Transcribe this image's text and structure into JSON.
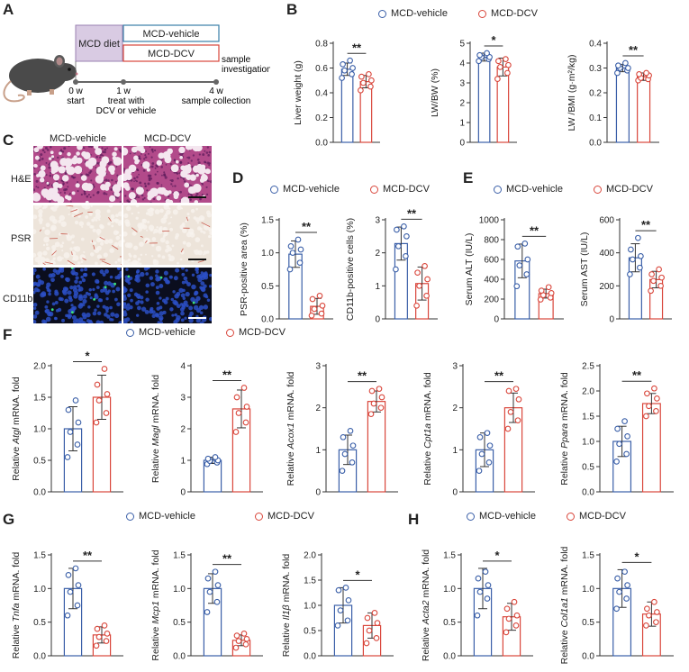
{
  "panel_labels": [
    "A",
    "B",
    "C",
    "D",
    "E",
    "F",
    "G",
    "H"
  ],
  "colors": {
    "vehicle": "#3a5fa8",
    "dcv": "#d9463b",
    "diet_box": "#d9cbe3",
    "axis": "#333333"
  },
  "legend": {
    "vehicle": "MCD-vehicle",
    "dcv": "MCD-DCV"
  },
  "schematic": {
    "diet_label": "MCD diet",
    "vehicle_box": "MCD-vehicle",
    "dcv_box": "MCD-DCV",
    "ticks": [
      {
        "time": "0 w",
        "desc": "start"
      },
      {
        "time": "1 w",
        "desc": "treat with DCV or vehicle"
      },
      {
        "time": "4 w",
        "desc": "sample collection"
      }
    ],
    "end_label": "sample investigation",
    "mouse_icon": "mouse-icon"
  },
  "micrographs": {
    "columns": [
      "MCD-vehicle",
      "MCD-DCV"
    ],
    "rows": [
      "H&E",
      "PSR",
      "CD11b"
    ]
  },
  "chart_data": [
    {
      "id": "B1",
      "type": "bar",
      "ylabel": "Liver weight (g)",
      "ylim": [
        0,
        0.8
      ],
      "yticks": [
        0,
        0.2,
        0.4,
        0.6,
        0.8
      ],
      "categories": [
        "MCD-vehicle",
        "MCD-DCV"
      ],
      "values": [
        0.59,
        0.49
      ],
      "sd": [
        0.05,
        0.05
      ],
      "sig": "**",
      "points": [
        [
          0.52,
          0.55,
          0.58,
          0.6,
          0.63,
          0.66
        ],
        [
          0.42,
          0.45,
          0.48,
          0.5,
          0.53,
          0.55
        ]
      ]
    },
    {
      "id": "B2",
      "type": "bar",
      "ylabel": "LW/BW (%)",
      "ylim": [
        0,
        5
      ],
      "yticks": [
        0,
        1,
        2,
        3,
        4,
        5
      ],
      "categories": [
        "MCD-vehicle",
        "MCD-DCV"
      ],
      "values": [
        4.3,
        3.8
      ],
      "sd": [
        0.2,
        0.45
      ],
      "sig": "*",
      "points": [
        [
          4.1,
          4.2,
          4.3,
          4.3,
          4.4,
          4.5
        ],
        [
          3.2,
          3.5,
          3.8,
          3.9,
          4.1,
          4.2
        ]
      ]
    },
    {
      "id": "B3",
      "type": "bar",
      "ylabel": "LW /BMI (g·m²/kg)",
      "ylim": [
        0,
        0.4
      ],
      "yticks": [
        0,
        0.1,
        0.2,
        0.3,
        0.4
      ],
      "categories": [
        "MCD-vehicle",
        "MCD-DCV"
      ],
      "values": [
        0.3,
        0.265
      ],
      "sd": [
        0.015,
        0.015
      ],
      "sig": "**",
      "points": [
        [
          0.28,
          0.29,
          0.3,
          0.3,
          0.31,
          0.32
        ],
        [
          0.25,
          0.255,
          0.26,
          0.27,
          0.275,
          0.28
        ]
      ]
    },
    {
      "id": "D1",
      "type": "bar",
      "ylabel": "PSR-positive area (%)",
      "ylim": [
        0,
        1.5
      ],
      "yticks": [
        0,
        0.5,
        1.0,
        1.5
      ],
      "categories": [
        "MCD-vehicle",
        "MCD-DCV"
      ],
      "values": [
        0.98,
        0.19
      ],
      "sd": [
        0.2,
        0.12
      ],
      "sig": "**",
      "points": [
        [
          0.75,
          0.85,
          1.0,
          1.05,
          1.1,
          1.2
        ],
        [
          0.05,
          0.08,
          0.15,
          0.2,
          0.3,
          0.35
        ]
      ]
    },
    {
      "id": "D2",
      "type": "bar",
      "ylabel": "CD11b-positive cells (%)",
      "ylim": [
        0,
        3
      ],
      "yticks": [
        0,
        1,
        2,
        3
      ],
      "categories": [
        "MCD-vehicle",
        "MCD-DCV"
      ],
      "values": [
        2.28,
        1.07
      ],
      "sd": [
        0.5,
        0.5
      ],
      "sig": "**",
      "points": [
        [
          1.5,
          1.9,
          2.2,
          2.5,
          2.7,
          2.8
        ],
        [
          0.4,
          0.7,
          1.0,
          1.2,
          1.4,
          1.6
        ]
      ]
    },
    {
      "id": "E1",
      "type": "bar",
      "ylabel": "Serum ALT (IU/L)",
      "ylim": [
        0,
        1000
      ],
      "yticks": [
        0,
        200,
        400,
        600,
        800,
        1000
      ],
      "categories": [
        "MCD-vehicle",
        "MCD-DCV"
      ],
      "values": [
        585,
        255
      ],
      "sd": [
        170,
        45
      ],
      "sig": "**",
      "points": [
        [
          330,
          450,
          540,
          600,
          730,
          760
        ],
        [
          195,
          215,
          240,
          260,
          285,
          320
        ]
      ]
    },
    {
      "id": "E2",
      "type": "bar",
      "ylabel": "Serum AST (IU/L)",
      "ylim": [
        0,
        600
      ],
      "yticks": [
        0,
        200,
        400,
        600
      ],
      "categories": [
        "MCD-vehicle",
        "MCD-DCV"
      ],
      "values": [
        370,
        238
      ],
      "sd": [
        85,
        50
      ],
      "sig": "**",
      "points": [
        [
          270,
          310,
          360,
          380,
          420,
          490
        ],
        [
          170,
          200,
          230,
          250,
          270,
          300
        ]
      ]
    },
    {
      "id": "F1",
      "type": "bar",
      "ylabel_pre": "Relative ",
      "ylabel_gene": "Atgl",
      "ylabel_post": " mRNA. fold",
      "ylim": [
        0,
        2
      ],
      "yticks": [
        0,
        0.5,
        1.0,
        1.5,
        2.0
      ],
      "categories": [
        "MCD-vehicle",
        "MCD-DCV"
      ],
      "values": [
        1.0,
        1.5
      ],
      "sd": [
        0.35,
        0.35
      ],
      "sig": "*",
      "points": [
        [
          0.55,
          0.75,
          0.95,
          1.1,
          1.3,
          1.45
        ],
        [
          1.1,
          1.25,
          1.45,
          1.55,
          1.7,
          1.95
        ]
      ]
    },
    {
      "id": "F2",
      "type": "bar",
      "ylabel_pre": "Relative ",
      "ylabel_gene": "Magl",
      "ylabel_post": " mRNA. fold",
      "ylim": [
        0,
        4
      ],
      "yticks": [
        0,
        1,
        2,
        3,
        4
      ],
      "categories": [
        "MCD-vehicle",
        "MCD-DCV"
      ],
      "values": [
        1.0,
        2.63
      ],
      "sd": [
        0.1,
        0.6
      ],
      "sig": "**",
      "points": [
        [
          0.88,
          0.93,
          0.98,
          1.0,
          1.05,
          1.1
        ],
        [
          1.9,
          2.2,
          2.5,
          2.7,
          3.0,
          3.3
        ]
      ]
    },
    {
      "id": "F3",
      "type": "bar",
      "ylabel_pre": "Relative ",
      "ylabel_gene": "Acox1",
      "ylabel_post": " mRNA. fold",
      "ylim": [
        0,
        3
      ],
      "yticks": [
        0,
        1,
        2,
        3
      ],
      "categories": [
        "MCD-vehicle",
        "MCD-DCV"
      ],
      "values": [
        1.0,
        2.15
      ],
      "sd": [
        0.35,
        0.25
      ],
      "sig": "**",
      "points": [
        [
          0.5,
          0.7,
          0.9,
          1.1,
          1.3,
          1.45
        ],
        [
          1.85,
          2.0,
          2.1,
          2.25,
          2.4,
          2.45
        ]
      ]
    },
    {
      "id": "F4",
      "type": "bar",
      "ylabel_pre": "Relative ",
      "ylabel_gene": "Cpt1a",
      "ylabel_post": " mRNA. fold",
      "ylim": [
        0,
        3
      ],
      "yticks": [
        0,
        1,
        2,
        3
      ],
      "categories": [
        "MCD-vehicle",
        "MCD-DCV"
      ],
      "values": [
        1.0,
        2.0
      ],
      "sd": [
        0.4,
        0.35
      ],
      "sig": "**",
      "points": [
        [
          0.5,
          0.7,
          0.9,
          1.1,
          1.3,
          1.4
        ],
        [
          1.5,
          1.7,
          1.9,
          2.2,
          2.4,
          2.45
        ]
      ]
    },
    {
      "id": "F5",
      "type": "bar",
      "ylabel_pre": "Relative ",
      "ylabel_gene": "Ppara",
      "ylabel_post": " mRNA. fold",
      "ylim": [
        0,
        2.5
      ],
      "yticks": [
        0,
        0.5,
        1.0,
        1.5,
        2.0,
        2.5
      ],
      "categories": [
        "MCD-vehicle",
        "MCD-DCV"
      ],
      "values": [
        1.0,
        1.75
      ],
      "sd": [
        0.3,
        0.2
      ],
      "sig": "**",
      "points": [
        [
          0.6,
          0.75,
          0.95,
          1.1,
          1.25,
          1.4
        ],
        [
          1.5,
          1.6,
          1.7,
          1.85,
          1.95,
          2.05
        ]
      ]
    },
    {
      "id": "G1",
      "type": "bar",
      "ylabel_pre": "Relative ",
      "ylabel_gene": "Tnfa",
      "ylabel_post": " mRNA. fold",
      "ylim": [
        0,
        1.5
      ],
      "yticks": [
        0,
        0.5,
        1.0,
        1.5
      ],
      "categories": [
        "MCD-vehicle",
        "MCD-DCV"
      ],
      "values": [
        1.0,
        0.31
      ],
      "sd": [
        0.3,
        0.12
      ],
      "sig": "**",
      "points": [
        [
          0.6,
          0.75,
          0.95,
          1.05,
          1.2,
          1.3
        ],
        [
          0.15,
          0.22,
          0.28,
          0.33,
          0.4,
          0.45
        ]
      ]
    },
    {
      "id": "G2",
      "type": "bar",
      "ylabel_pre": "Relative ",
      "ylabel_gene": "Mcp1",
      "ylabel_post": " mRNA. fold",
      "ylim": [
        0,
        1.5
      ],
      "yticks": [
        0,
        0.5,
        1.0,
        1.5
      ],
      "categories": [
        "MCD-vehicle",
        "MCD-DCV"
      ],
      "values": [
        1.0,
        0.23
      ],
      "sd": [
        0.22,
        0.08
      ],
      "sig": "**",
      "points": [
        [
          0.65,
          0.8,
          0.95,
          1.05,
          1.15,
          1.25
        ],
        [
          0.12,
          0.17,
          0.22,
          0.25,
          0.3,
          0.33
        ]
      ]
    },
    {
      "id": "G3",
      "type": "bar",
      "ylabel_pre": "Relative ",
      "ylabel_gene": "Il1β",
      "ylabel_post": " mRNA. fold",
      "ylim": [
        0,
        2.0
      ],
      "yticks": [
        0,
        0.5,
        1.0,
        1.5,
        2.0
      ],
      "categories": [
        "MCD-vehicle",
        "MCD-DCV"
      ],
      "values": [
        1.0,
        0.6
      ],
      "sd": [
        0.35,
        0.25
      ],
      "sig": "*",
      "points": [
        [
          0.6,
          0.7,
          0.9,
          1.1,
          1.3,
          1.35
        ],
        [
          0.25,
          0.35,
          0.5,
          0.65,
          0.75,
          0.85
        ]
      ]
    },
    {
      "id": "H1",
      "type": "bar",
      "ylabel_pre": "Relative ",
      "ylabel_gene": "Acta2",
      "ylabel_post": " mRNA. fold",
      "ylim": [
        0,
        1.5
      ],
      "yticks": [
        0,
        0.5,
        1.0,
        1.5
      ],
      "categories": [
        "MCD-vehicle",
        "MCD-DCV"
      ],
      "values": [
        1.0,
        0.58
      ],
      "sd": [
        0.3,
        0.2
      ],
      "sig": "*",
      "points": [
        [
          0.6,
          0.85,
          0.95,
          1.05,
          1.15,
          1.25
        ],
        [
          0.35,
          0.45,
          0.55,
          0.6,
          0.7,
          0.8
        ]
      ]
    },
    {
      "id": "H2",
      "type": "bar",
      "ylabel_pre": "Relative ",
      "ylabel_gene": "Col1a1",
      "ylabel_post": " mRNA. fold",
      "ylim": [
        0,
        1.5
      ],
      "yticks": [
        0,
        0.5,
        1.0,
        1.5
      ],
      "categories": [
        "MCD-vehicle",
        "MCD-DCV"
      ],
      "values": [
        1.0,
        0.62
      ],
      "sd": [
        0.28,
        0.18
      ],
      "sig": "*",
      "points": [
        [
          0.7,
          0.85,
          0.95,
          1.05,
          1.15,
          1.25
        ],
        [
          0.45,
          0.5,
          0.6,
          0.65,
          0.7,
          0.8
        ]
      ]
    }
  ]
}
